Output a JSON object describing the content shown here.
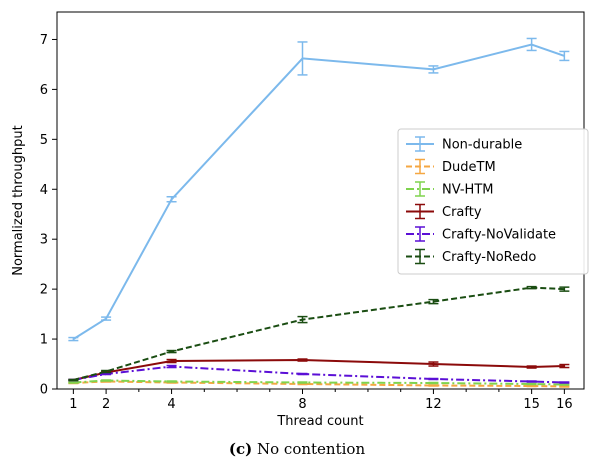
{
  "caption": {
    "label": "(c)",
    "text": "No contention"
  },
  "chart_data": {
    "type": "line",
    "xlabel": "Thread count",
    "ylabel": "Normalized throughput",
    "xlim": [
      0.5,
      16.6
    ],
    "ylim": [
      0,
      7.55
    ],
    "x_ticks": [
      1,
      2,
      4,
      8,
      12,
      15,
      16
    ],
    "x_minor_ticks": [
      3,
      5,
      6,
      7,
      9,
      10,
      11,
      13,
      14
    ],
    "y_ticks": [
      0,
      1,
      2,
      3,
      4,
      5,
      6,
      7
    ],
    "legend_position": "right-center",
    "grid": false,
    "series": [
      {
        "name": "Non-durable",
        "color": "#7cb9ec",
        "dash": "solid",
        "x": [
          1,
          2,
          4,
          8,
          12,
          15,
          16
        ],
        "y": [
          1.0,
          1.41,
          3.8,
          6.62,
          6.4,
          6.9,
          6.67
        ],
        "err": [
          0.03,
          0.03,
          0.05,
          0.33,
          0.07,
          0.12,
          0.09
        ]
      },
      {
        "name": "DudeTM",
        "color": "#f5a742",
        "dash": "dashed",
        "x": [
          1,
          2,
          4,
          8,
          12,
          15,
          16
        ],
        "y": [
          0.12,
          0.15,
          0.13,
          0.1,
          0.07,
          0.06,
          0.05
        ],
        "err": [
          0.01,
          0.01,
          0.01,
          0.01,
          0.01,
          0.01,
          0.01
        ]
      },
      {
        "name": "NV-HTM",
        "color": "#7fd34e",
        "dash": "dashdot",
        "x": [
          1,
          2,
          4,
          8,
          12,
          15,
          16
        ],
        "y": [
          0.13,
          0.17,
          0.15,
          0.13,
          0.12,
          0.1,
          0.09
        ],
        "err": [
          0.01,
          0.01,
          0.01,
          0.01,
          0.01,
          0.01,
          0.01
        ]
      },
      {
        "name": "Crafty",
        "color": "#8b0a0a",
        "dash": "solid",
        "x": [
          1,
          2,
          4,
          8,
          12,
          15,
          16
        ],
        "y": [
          0.18,
          0.33,
          0.56,
          0.58,
          0.5,
          0.44,
          0.46
        ],
        "err": [
          0.01,
          0.02,
          0.03,
          0.02,
          0.04,
          0.02,
          0.03
        ]
      },
      {
        "name": "Crafty-NoValidate",
        "color": "#5b0fd6",
        "dash": "dashdot",
        "x": [
          1,
          2,
          4,
          8,
          12,
          15,
          16
        ],
        "y": [
          0.18,
          0.3,
          0.45,
          0.3,
          0.2,
          0.15,
          0.13
        ],
        "err": [
          0.01,
          0.01,
          0.02,
          0.01,
          0.01,
          0.01,
          0.01
        ]
      },
      {
        "name": "Crafty-NoRedo",
        "color": "#1a4d12",
        "dash": "dashed",
        "x": [
          1,
          2,
          4,
          8,
          12,
          15,
          16
        ],
        "y": [
          0.18,
          0.35,
          0.75,
          1.39,
          1.75,
          2.03,
          2.0
        ],
        "err": [
          0.01,
          0.02,
          0.02,
          0.06,
          0.04,
          0.02,
          0.04
        ]
      }
    ]
  }
}
